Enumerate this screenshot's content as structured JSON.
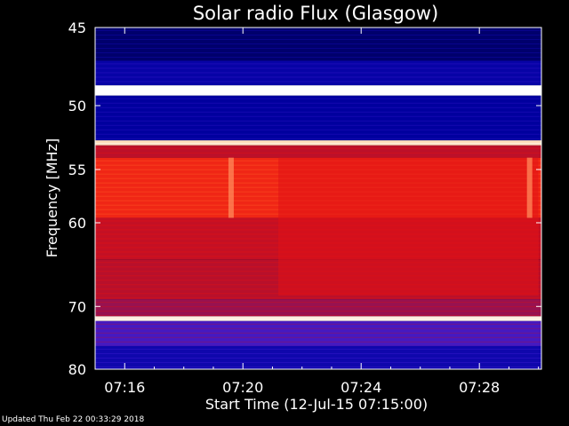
{
  "chart_data": {
    "type": "heatmap",
    "title": "Solar radio Flux (Glasgow)",
    "xlabel": "Start Time (12-Jul-15 07:15:00)",
    "ylabel": "Frequency [MHz]",
    "x_ticks": [
      "07:16",
      "07:20",
      "07:24",
      "07:28"
    ],
    "x_tick_minutes": [
      1,
      5,
      9,
      13
    ],
    "xlim_minutes": [
      0.0,
      15.1
    ],
    "y_ticks": [
      "45",
      "50",
      "55",
      "60",
      "70",
      "80"
    ],
    "y_tick_values": [
      45,
      50,
      55,
      60,
      70,
      80
    ],
    "ylim": [
      45,
      80
    ],
    "y_scale": "reciprocal",
    "colormap": [
      "#00002a",
      "#0000a0",
      "#3a1ad0",
      "#b01030",
      "#e81010",
      "#ff5020",
      "#ffd0a0",
      "#ffffff"
    ],
    "bands": [
      {
        "freq_start": 45.0,
        "freq_end": 47.0,
        "level": 0.08
      },
      {
        "freq_start": 47.0,
        "freq_end": 48.6,
        "level": 0.16
      },
      {
        "freq_start": 48.6,
        "freq_end": 49.3,
        "level": 1.0
      },
      {
        "freq_start": 49.3,
        "freq_end": 52.6,
        "level": 0.14
      },
      {
        "freq_start": 52.6,
        "freq_end": 53.0,
        "level": 0.9
      },
      {
        "freq_start": 53.0,
        "freq_end": 54.0,
        "level": 0.46
      },
      {
        "freq_start": 54.0,
        "freq_end": 59.5,
        "level": 0.62
      },
      {
        "freq_start": 59.5,
        "freq_end": 64.0,
        "level": 0.48
      },
      {
        "freq_start": 64.0,
        "freq_end": 69.0,
        "level": 0.45
      },
      {
        "freq_start": 69.0,
        "freq_end": 71.4,
        "level": 0.4
      },
      {
        "freq_start": 71.4,
        "freq_end": 72.1,
        "level": 0.95
      },
      {
        "freq_start": 72.1,
        "freq_end": 76.0,
        "level": 0.3
      },
      {
        "freq_start": 76.0,
        "freq_end": 80.0,
        "level": 0.18
      }
    ],
    "enhanced_region": {
      "time_start": 6.2,
      "time_end": 15.0,
      "freq_start": 54.0,
      "freq_end": 68.5,
      "level": 0.55
    },
    "vertical_events": [
      {
        "time": 4.6,
        "freq_start": 54.0,
        "freq_end": 59.5
      },
      {
        "time": 14.7,
        "freq_start": 54.0,
        "freq_end": 59.5
      }
    ]
  },
  "footer": "Updated Thu Feb 22 00:33:29 2018"
}
